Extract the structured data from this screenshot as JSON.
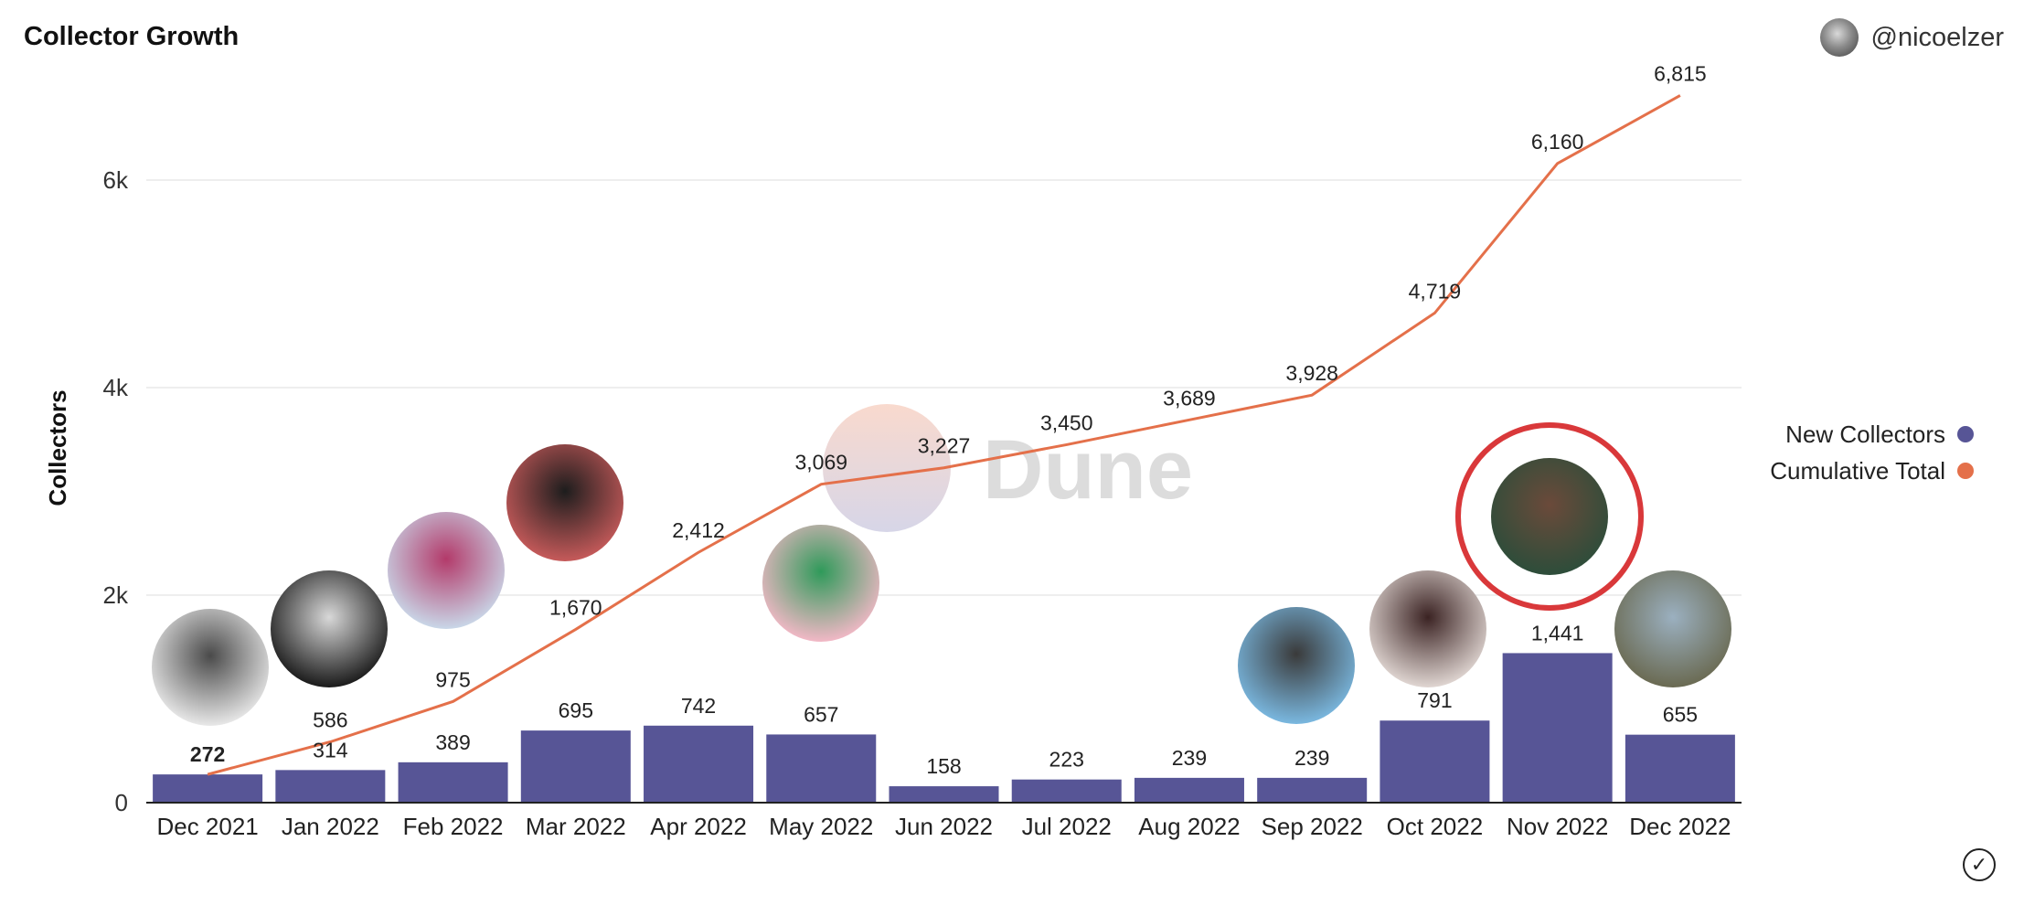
{
  "header": {
    "title": "Collector Growth",
    "user_handle": "@nicoelzer"
  },
  "watermark": "Dune",
  "colors": {
    "bar": "#575596",
    "line": "#e4704a",
    "highlight_ring": "#d9383a",
    "grid": "#e8e8e8",
    "axis": "#222222"
  },
  "chart_data": {
    "type": "bar",
    "categories": [
      "Dec 2021",
      "Jan 2022",
      "Feb 2022",
      "Mar 2022",
      "Apr 2022",
      "May 2022",
      "Jun 2022",
      "Jul 2022",
      "Aug 2022",
      "Sep 2022",
      "Oct 2022",
      "Nov 2022",
      "Dec 2022"
    ],
    "series": [
      {
        "name": "New Collectors",
        "type": "bar",
        "values": [
          272,
          314,
          389,
          695,
          742,
          657,
          158,
          223,
          239,
          239,
          791,
          1441,
          655
        ]
      },
      {
        "name": "Cumulative Total",
        "type": "line",
        "values": [
          272,
          586,
          975,
          1670,
          2412,
          3069,
          3227,
          3450,
          3689,
          3928,
          4719,
          6160,
          6815
        ]
      }
    ],
    "ylabel": "Collectors",
    "ylim": [
      0,
      7000
    ],
    "yticks": [
      0,
      2000,
      4000,
      6000
    ],
    "ytick_labels": [
      "0",
      "2k",
      "4k",
      "6k"
    ],
    "grid": true,
    "legend_position": "right",
    "avatar_images": [
      "Dec 2021",
      "Jan 2022",
      "Feb 2022",
      "Mar 2022",
      "May 2022",
      "Sep 2022",
      "Oct 2022",
      "Nov 2022",
      "Dec 2022"
    ],
    "highlighted": "Nov 2022"
  }
}
